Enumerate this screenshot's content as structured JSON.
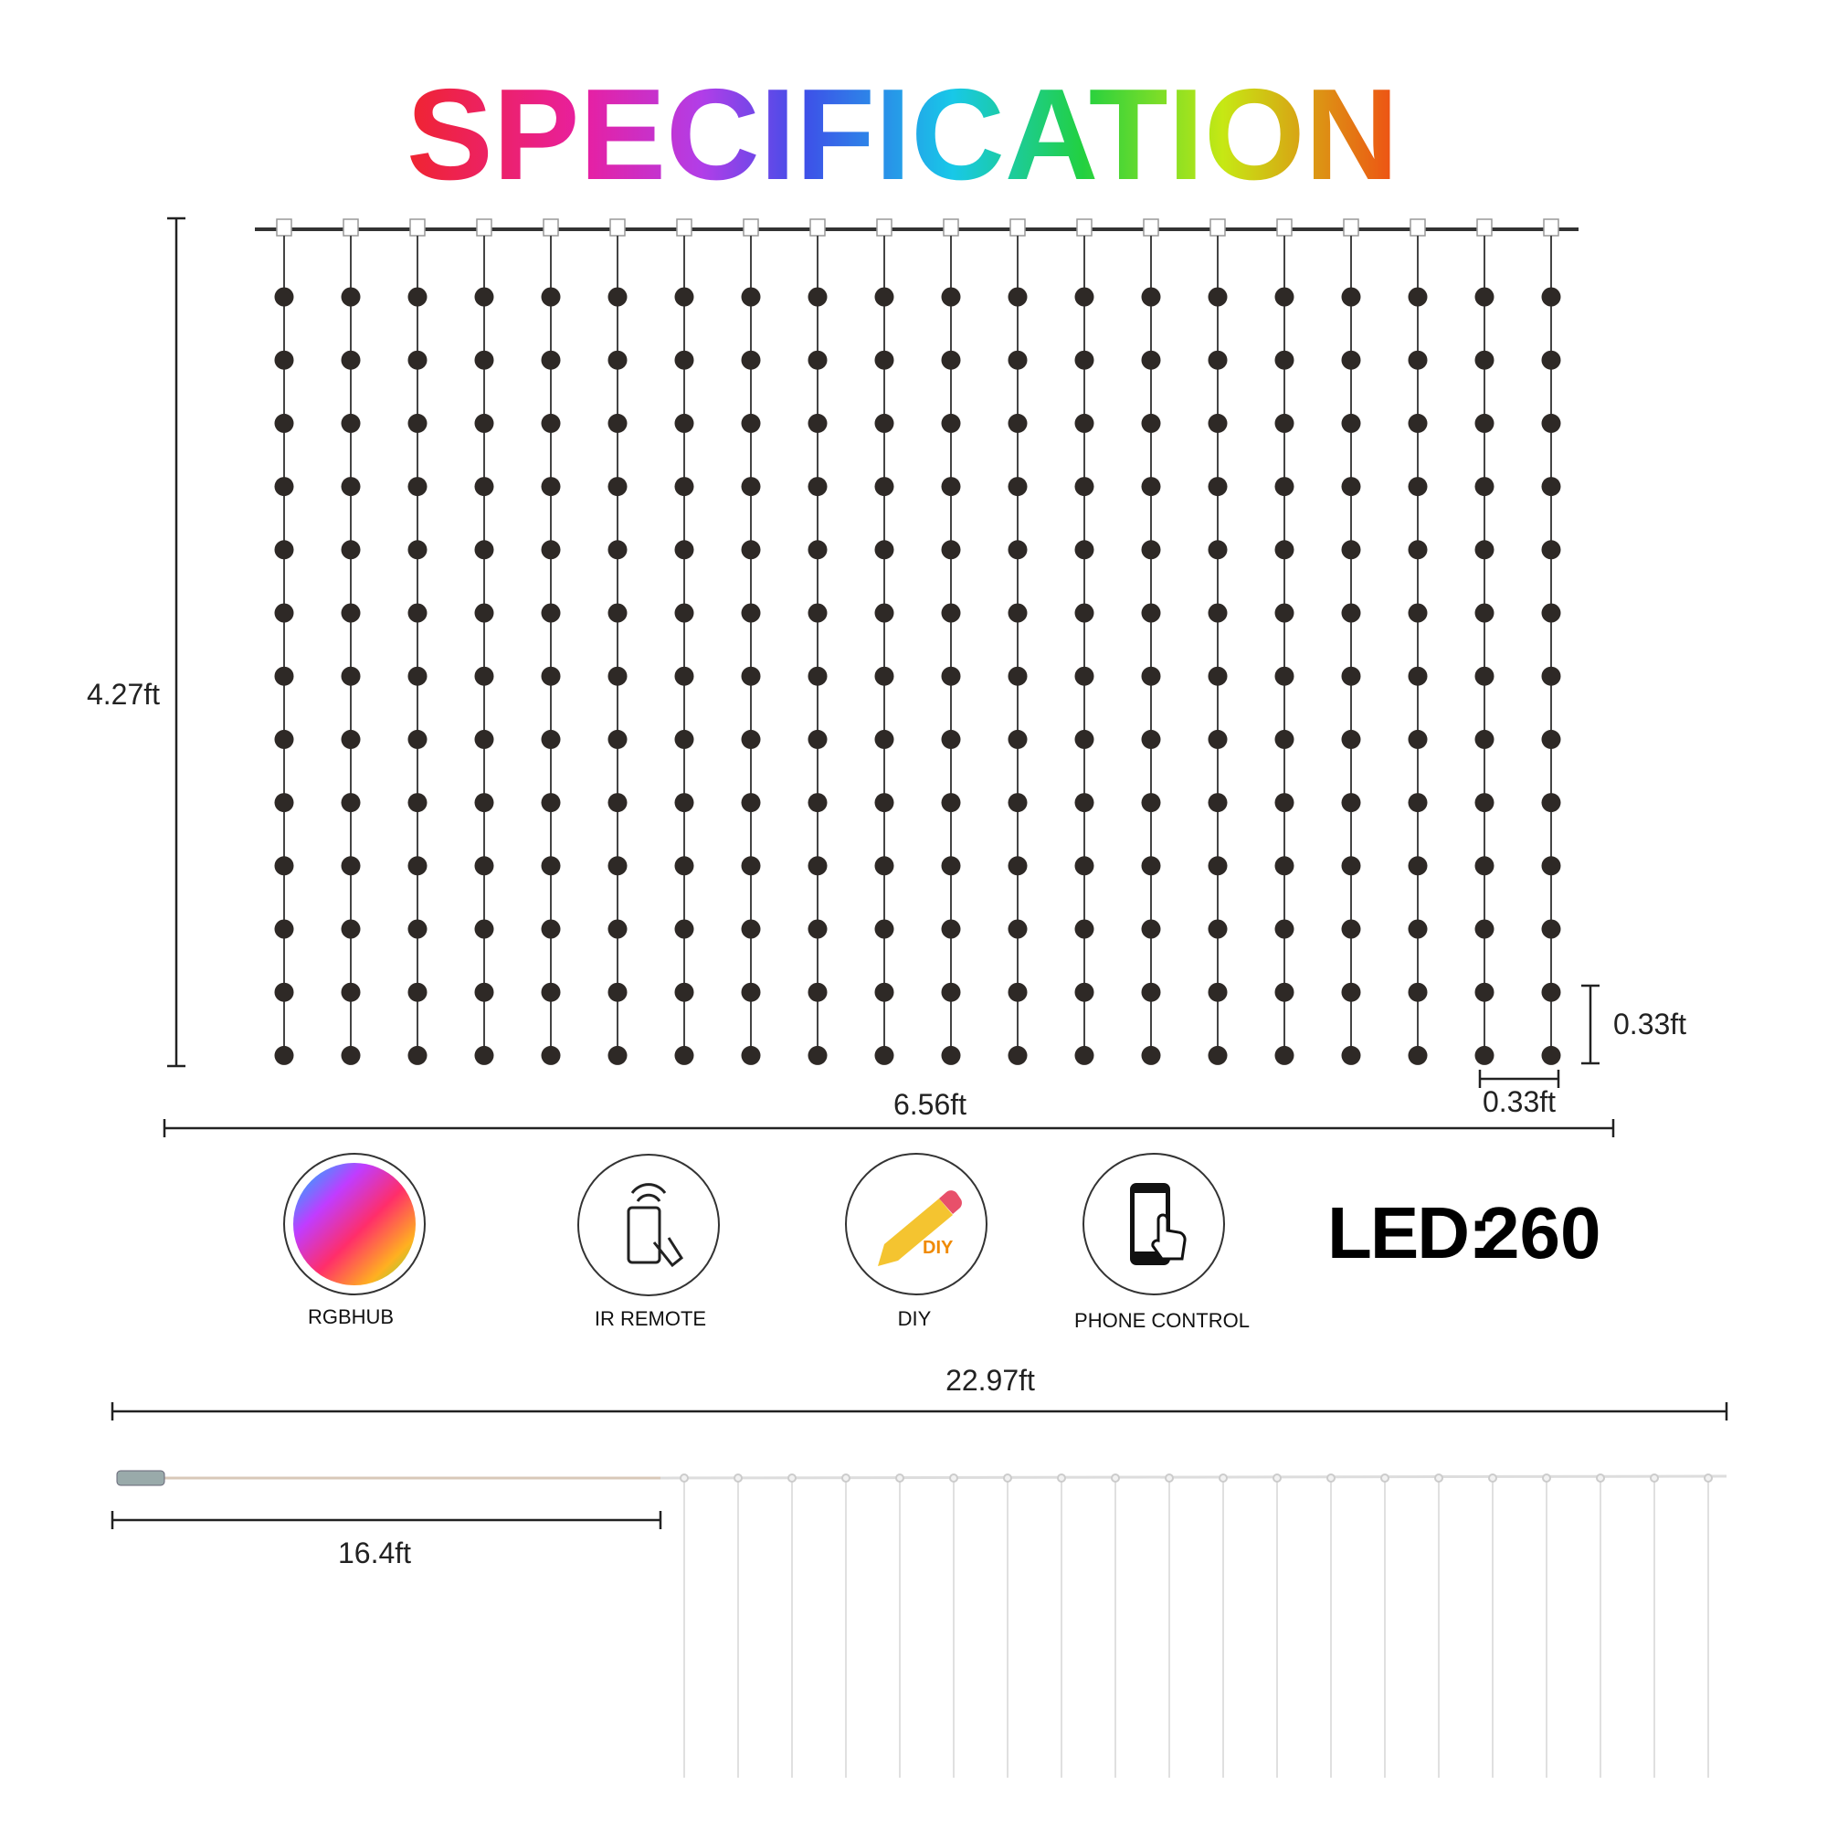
{
  "title": "SPECIFICATION",
  "dimensions": {
    "height": "4.27ft",
    "width": "6.56ft",
    "led_spacing": "0.33ft",
    "strand_spacing": "0.33ft",
    "total_length": "22.97ft",
    "lead_length": "16.4ft"
  },
  "features": [
    {
      "label": "RGBHUB"
    },
    {
      "label": "IR REMOTE"
    },
    {
      "label": "DIY"
    },
    {
      "label": "PHONE CONTROL"
    }
  ],
  "led": {
    "label": "LED:",
    "count": "260"
  }
}
